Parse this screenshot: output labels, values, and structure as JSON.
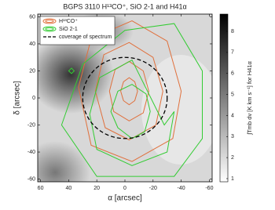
{
  "chart_data": {
    "type": "contour",
    "title": "BGPS 3110 H¹³CO⁺, SiO 2-1 and H41α",
    "xlabel": "α [arcsec]",
    "ylabel": "δ [arcsec]",
    "xlim": [
      62,
      -62
    ],
    "ylim": [
      -62,
      62
    ],
    "xticks": [
      60,
      40,
      20,
      0,
      -20,
      -40,
      -60
    ],
    "yticks": [
      -60,
      -40,
      -20,
      0,
      20,
      40,
      60
    ],
    "series": [
      {
        "name": "H¹³CO⁺",
        "color": "#e0703c",
        "contours": [
          {
            "x": [
              3,
              1,
              -3,
              -7,
              -9,
              -7,
              -3,
              1
            ],
            "y": [
              5,
              12,
              15,
              12,
              5,
              -2,
              -5,
              -2
            ]
          },
          {
            "x": [
              11,
              7,
              -3,
              -13,
              -17,
              -13,
              -3,
              8
            ],
            "y": [
              5,
              21,
              27,
              20,
              5,
              -11,
              -17,
              -10
            ]
          },
          {
            "x": [
              21,
              15,
              -3,
              -20,
              -27,
              -22,
              -3,
              14
            ],
            "y": [
              5,
              32,
              41,
              30,
              5,
              -20,
              -31,
              -22
            ]
          },
          {
            "x": [
              33,
              24,
              -5,
              -30,
              -40,
              -34,
              -5,
              24
            ],
            "y": [
              8,
              44,
              57,
              42,
              5,
              -30,
              -47,
              -35
            ]
          }
        ]
      },
      {
        "name": "SiO 2-1",
        "color": "#33cc33",
        "contours": [
          {
            "x": [
              10,
              5,
              -5,
              -15,
              -18,
              -14,
              -5,
              5
            ],
            "y": [
              -10,
              5,
              10,
              3,
              -10,
              -25,
              -30,
              -22
            ]
          },
          {
            "x": [
              25,
              18,
              -5,
              -28,
              -35,
              -30,
              -5,
              20
            ],
            "y": [
              -12,
              15,
              28,
              -20,
              -10,
              -40,
              -50,
              -38
            ]
          },
          {
            "x": [
              45,
              30,
              0,
              -35,
              -55,
              -55,
              -35,
              20
            ],
            "y": [
              -20,
              25,
              50,
              55,
              20,
              -30,
              -58,
              -58
            ]
          },
          {
            "x": [
              40,
              38,
              36,
              38
            ],
            "y": [
              20,
              22,
              20,
              18
            ]
          }
        ]
      }
    ],
    "circle": {
      "name": "coverage of spectrum",
      "color": "#000000",
      "x": 0,
      "y": 0,
      "r": 30
    },
    "colorbar": {
      "label": "∫Tmb dv [K km s⁻¹] for H41α",
      "lim": [
        0.85,
        8.82
      ],
      "ticks": [
        1,
        2,
        3,
        4,
        5,
        6,
        7,
        8
      ]
    }
  }
}
